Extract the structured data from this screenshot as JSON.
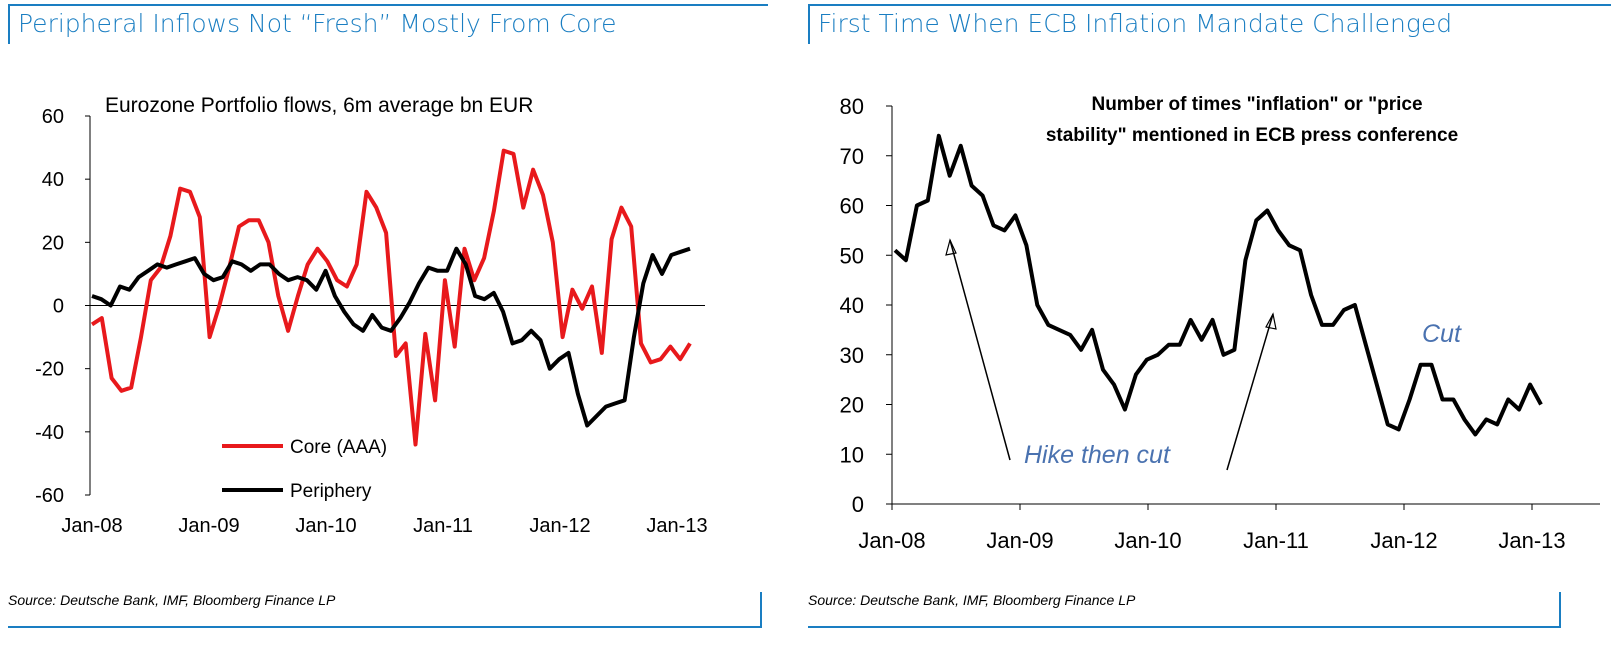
{
  "chart_data": [
    {
      "type": "line",
      "title": "Peripheral Inflows Not “Fresh” Mostly From Core",
      "subtitle": "Eurozone Portfolio flows, 6m average bn EUR",
      "source": "Source: Deutsche Bank, IMF, Bloomberg Finance LP",
      "xlabel": "",
      "ylabel": "",
      "ylim": [
        -60,
        60
      ],
      "yticks": [
        "60",
        "40",
        "20",
        "0",
        "-20",
        "-40",
        "-60"
      ],
      "yticks_values": [
        60,
        40,
        20,
        0,
        -20,
        -40,
        -60
      ],
      "xticks": [
        "Jan-08",
        "Jan-09",
        "Jan-10",
        "Jan-11",
        "Jan-12",
        "Jan-13"
      ],
      "grid": false,
      "legend_position": "bottom-left",
      "series": [
        {
          "name": "Core (AAA)",
          "color": "#e8191c",
          "values": [
            -6,
            -4,
            -23,
            -27,
            -26,
            -10,
            8,
            12,
            22,
            37,
            36,
            28,
            -10,
            0,
            12,
            25,
            27,
            27,
            20,
            3,
            -8,
            3,
            13,
            18,
            14,
            8,
            6,
            13,
            36,
            31,
            23,
            -16,
            -12,
            -44,
            -9,
            -30,
            8,
            -13,
            18,
            8,
            15,
            30,
            49,
            48,
            31,
            43,
            35,
            20,
            -10,
            5,
            -1,
            6,
            -15,
            21,
            31,
            25,
            -12,
            -18,
            -17,
            -13,
            -17,
            -12
          ]
        },
        {
          "name": "Periphery",
          "color": "#000000",
          "values": [
            3,
            2,
            0,
            6,
            5,
            9,
            11,
            13,
            12,
            13,
            14,
            15,
            10,
            8,
            9,
            14,
            13,
            11,
            13,
            13,
            10,
            8,
            9,
            8,
            5,
            11,
            3,
            -2,
            -6,
            -8,
            -3,
            -7,
            -8,
            -4,
            1,
            7,
            12,
            11,
            11,
            18,
            13,
            3,
            2,
            4,
            -2,
            -12,
            -11,
            -8,
            -11,
            -20,
            -17,
            -15,
            -28,
            -38,
            -35,
            -32,
            -31,
            -30,
            -10,
            7,
            16,
            10,
            16,
            17,
            18
          ]
        }
      ]
    },
    {
      "type": "line",
      "title": "First Time When ECB Inflation Mandate Challenged",
      "subtitle": "Number of times \"inflation\" or  \"price stability\" mentioned in  ECB  press conference",
      "subtitle_lines": [
        "Number of times \"inflation\" or  \"price",
        "stability\" mentioned in  ECB  press conference"
      ],
      "source": "Source: Deutsche Bank, IMF, Bloomberg Finance LP",
      "xlabel": "",
      "ylabel": "",
      "ylim": [
        0,
        80
      ],
      "yticks": [
        "80",
        "70",
        "60",
        "50",
        "40",
        "30",
        "20",
        "10",
        "0"
      ],
      "yticks_values": [
        80,
        70,
        60,
        50,
        40,
        30,
        20,
        10,
        0
      ],
      "xticks": [
        "Jan-08",
        "Jan-09",
        "Jan-10",
        "Jan-11",
        "Jan-12",
        "Jan-13"
      ],
      "grid": false,
      "annotations": [
        "Hike then cut",
        "Cut"
      ],
      "series": [
        {
          "name": "",
          "color": "#000000",
          "values": [
            51,
            49,
            60,
            61,
            74,
            66,
            72,
            64,
            62,
            56,
            55,
            58,
            52,
            40,
            36,
            35,
            34,
            31,
            35,
            27,
            24,
            19,
            26,
            29,
            30,
            32,
            32,
            37,
            33,
            37,
            30,
            31,
            49,
            57,
            59,
            55,
            52,
            51,
            42,
            36,
            36,
            39,
            40,
            32,
            24,
            16,
            15,
            21,
            28,
            28,
            21,
            21,
            17,
            14,
            17,
            16,
            21,
            19,
            24,
            20
          ]
        }
      ]
    }
  ]
}
